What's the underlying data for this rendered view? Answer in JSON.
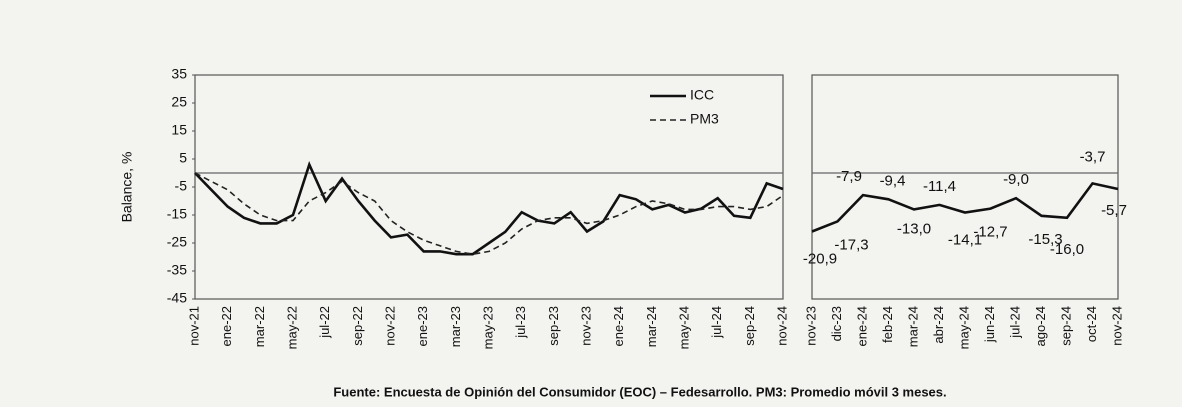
{
  "chart_data": [
    {
      "type": "line",
      "ylabel": "Balance, %",
      "categories": [
        "nov-21",
        null,
        "ene-22",
        null,
        "mar-22",
        null,
        "may-22",
        null,
        "jul-22",
        null,
        "sep-22",
        null,
        "nov-22",
        null,
        "ene-23",
        null,
        "mar-23",
        null,
        "may-23",
        null,
        "jul-23",
        null,
        "sep-23",
        null,
        "nov-23",
        null,
        "ene-24",
        null,
        "mar-24",
        null,
        "may-24",
        null,
        "jul-24",
        null,
        "sep-24",
        null,
        "nov-24"
      ],
      "series": [
        {
          "name": "ICC",
          "color": "#111111",
          "dash": false,
          "values": [
            0,
            -6,
            -12,
            -16,
            -18,
            -18,
            -15,
            3,
            -10,
            -2,
            -10,
            -17,
            -23,
            -22,
            -28,
            -28,
            -29,
            -29,
            -25,
            -21,
            -14,
            -17,
            -18,
            -14,
            -20.9,
            -17.3,
            -7.9,
            -9.4,
            -13.0,
            -11.4,
            -14.1,
            -12.7,
            -9.0,
            -15.3,
            -16.0,
            -3.7,
            -5.7
          ]
        },
        {
          "name": "PM3",
          "color": "#222222",
          "dash": true,
          "values": [
            0,
            -3,
            -6,
            -11,
            -15,
            -17,
            -17,
            -10,
            -7,
            -3,
            -7,
            -10,
            -17,
            -21,
            -24,
            -26,
            -28,
            -29,
            -28,
            -25,
            -20,
            -17,
            -16,
            -16,
            -18,
            -17,
            -15,
            -12,
            -10,
            -11,
            -13,
            -13,
            -12,
            -12,
            -13,
            -12,
            -8
          ]
        }
      ],
      "ylim": [
        -45,
        35
      ],
      "yticks": [
        35,
        25,
        15,
        5,
        -5,
        -15,
        -25,
        -35,
        -45
      ],
      "hline": 0,
      "legend": "upper right"
    },
    {
      "type": "line",
      "categories": [
        "nov-23",
        "dic-23",
        "ene-24",
        "feb-24",
        "mar-24",
        "abr-24",
        "may-24",
        "jun-24",
        "jul-24",
        "ago-24",
        "sep-24",
        "oct-24",
        "nov-24"
      ],
      "series": [
        {
          "name": "ICC",
          "color": "#111111",
          "values": [
            -20.9,
            -17.3,
            -7.9,
            -9.4,
            -13.0,
            -11.4,
            -14.1,
            -12.7,
            -9.0,
            -15.3,
            -16.0,
            -3.7,
            -5.7
          ],
          "value_labels": [
            "-20,9",
            "-17,3",
            "-7,9",
            "-9,4",
            "-13,0",
            "-11,4",
            "-14,1",
            "-12,7",
            "-9,0",
            "-15,3",
            "-16,0",
            "-3,7",
            "-5,7"
          ]
        }
      ],
      "ylim": [
        -45,
        35
      ],
      "hline": 0
    }
  ],
  "source": "Fuente: Encuesta de Opinión del Consumidor (EOC) – Fedesarrollo. PM3: Promedio móvil 3 meses."
}
